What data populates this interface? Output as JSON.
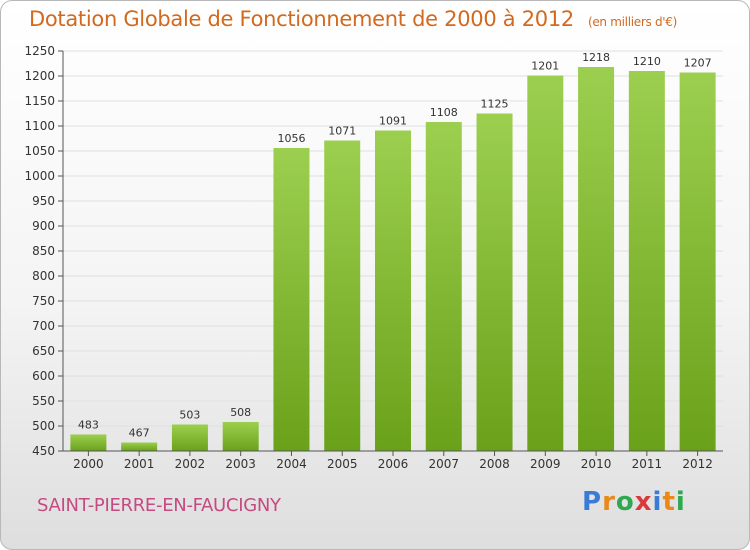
{
  "chart_data": {
    "type": "bar",
    "title": "Dotation Globale de Fonctionnement de 2000 à 2012",
    "subtitle": "(en milliers d'€)",
    "categories": [
      "2000",
      "2001",
      "2002",
      "2003",
      "2004",
      "2005",
      "2006",
      "2007",
      "2008",
      "2009",
      "2010",
      "2011",
      "2012"
    ],
    "values": [
      483,
      467,
      503,
      508,
      1056,
      1071,
      1091,
      1108,
      1125,
      1201,
      1218,
      1210,
      1207
    ],
    "ylim": [
      450,
      1250
    ],
    "yticks": [
      450,
      500,
      550,
      600,
      650,
      700,
      750,
      800,
      850,
      900,
      950,
      1000,
      1050,
      1100,
      1150,
      1200,
      1250
    ],
    "grid": true,
    "bar_color_top": "#9ccf4f",
    "bar_color_bottom": "#6aa11a",
    "xlabel": "",
    "ylabel": ""
  },
  "footer": {
    "commune": "SAINT-PIERRE-EN-FAUCIGNY",
    "brand": "Proxiti"
  },
  "colors": {
    "title": "#d2691e",
    "commune": "#c64a82",
    "grid": "#e0e0e0",
    "axis": "#555555"
  }
}
